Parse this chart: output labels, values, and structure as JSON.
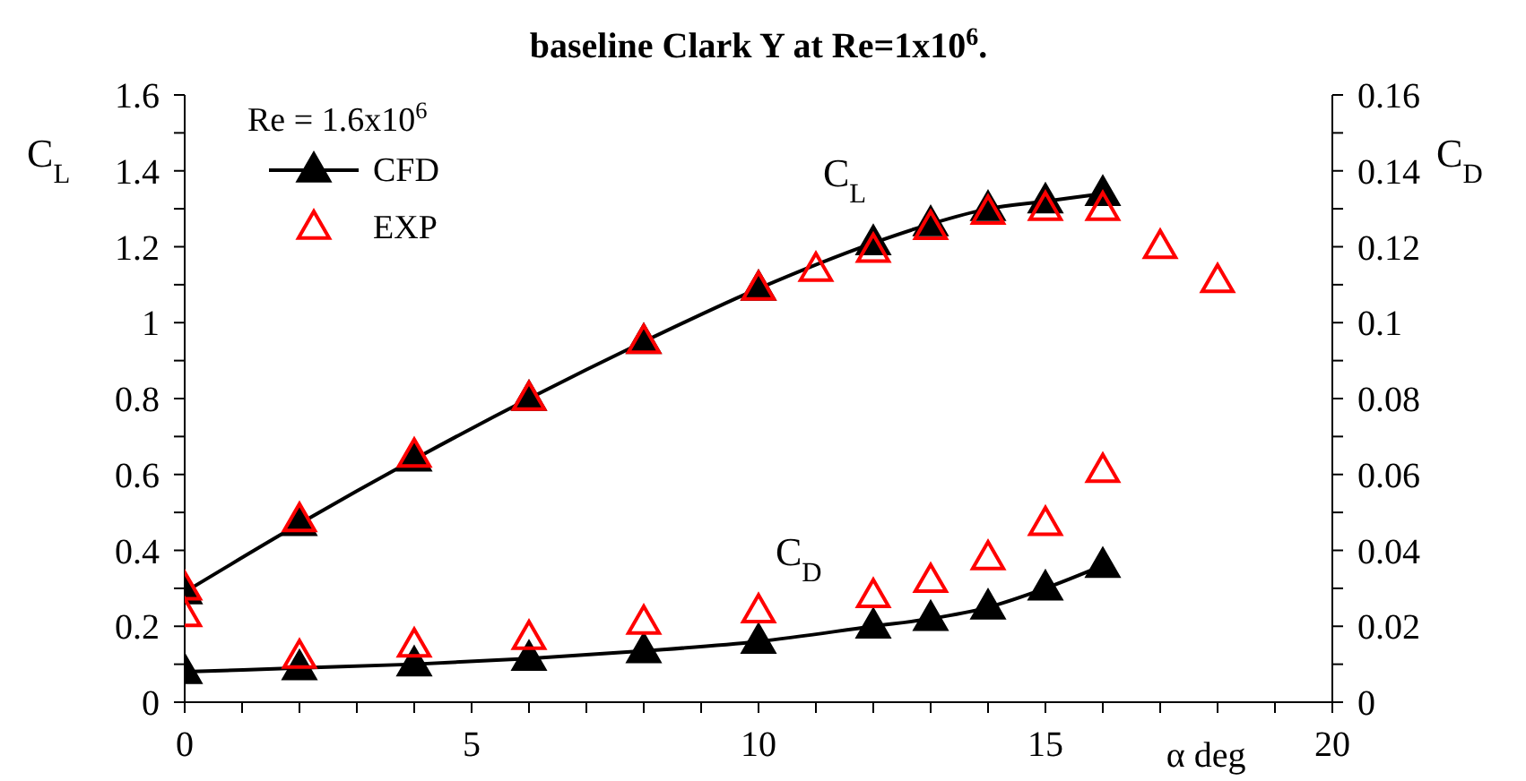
{
  "chart_data": {
    "type": "line",
    "title": "baseline Clark Y at Re=1x10$^{6}$.",
    "xlabel": "α deg",
    "ylabel": "C$_{L}$",
    "y2label": "C$_{D}$",
    "legend_title": "Re = 1.6x10$^{6}$",
    "annotations": [
      "C$_{L}$",
      "C$_{D}$"
    ],
    "xlim": [
      0,
      20
    ],
    "xticks": [
      0,
      {
        "value": 1,
        "label": null
      },
      {
        "value": 2,
        "label": null
      },
      {
        "value": 3,
        "label": null
      },
      {
        "value": 4,
        "label": null
      },
      5,
      {
        "value": 6,
        "label": null
      },
      {
        "value": 7,
        "label": null
      },
      {
        "value": 8,
        "label": null
      },
      {
        "value": 9,
        "label": null
      },
      10,
      {
        "value": 11,
        "label": null
      },
      {
        "value": 12,
        "label": null
      },
      {
        "value": 13,
        "label": null
      },
      {
        "value": 14,
        "label": null
      },
      15,
      {
        "value": 16,
        "label": null
      },
      {
        "value": 17,
        "label": null
      },
      {
        "value": 18,
        "label": null
      },
      {
        "value": 19,
        "label": null
      },
      20
    ],
    "ylim": [
      0,
      1.6
    ],
    "yticks": [
      0,
      {
        "value": 0.1,
        "label": null
      },
      0.2,
      {
        "value": 0.3,
        "label": null
      },
      0.4,
      {
        "value": 0.5,
        "label": null
      },
      0.6,
      {
        "value": 0.7,
        "label": null
      },
      0.8,
      {
        "value": 0.9,
        "label": null
      },
      1,
      {
        "value": 1.1,
        "label": null
      },
      1.2,
      {
        "value": 1.3,
        "label": null
      },
      1.4,
      {
        "value": 1.5,
        "label": null
      },
      1.6
    ],
    "y2lim": [
      0,
      0.16
    ],
    "y2ticks": [
      0,
      {
        "value": 0.01,
        "label": null
      },
      0.02,
      {
        "value": 0.03,
        "label": null
      },
      0.04,
      {
        "value": 0.05,
        "label": null
      },
      0.06,
      {
        "value": 0.07,
        "label": null
      },
      0.08,
      {
        "value": 0.09,
        "label": null
      },
      0.1,
      {
        "value": 0.11,
        "label": null
      },
      0.12,
      {
        "value": 0.13,
        "label": null
      },
      0.14,
      {
        "value": 0.15,
        "label": null
      },
      0.16
    ],
    "grid": false,
    "legend": "top left",
    "marker": "triangle",
    "line_style": "solid",
    "series": [
      {
        "name": "CFD",
        "type": "line",
        "color": "#000000",
        "x": [
          0,
          2,
          4,
          6,
          8,
          10,
          12,
          13,
          14,
          15,
          16
        ],
        "values": [
          0.29,
          0.47,
          0.64,
          0.8,
          0.95,
          1.09,
          1.21,
          1.26,
          1.3,
          1.32,
          1.34
        ]
      },
      {
        "name": "EXP",
        "type": "scatter",
        "color": "#ff0000",
        "x": [
          0,
          2,
          4,
          6,
          8,
          10,
          11,
          12,
          13,
          14,
          15,
          16,
          17,
          18
        ],
        "values": [
          0.3,
          0.48,
          0.65,
          0.8,
          0.95,
          1.09,
          1.14,
          1.19,
          1.25,
          1.29,
          1.3,
          1.3,
          1.2,
          1.11
        ]
      },
      {
        "type": "line",
        "axis": "y2",
        "color": "#000000",
        "x": [
          0,
          2,
          4,
          6,
          8,
          10,
          12,
          13,
          14,
          15,
          16
        ],
        "values": [
          0.008,
          0.009,
          0.01,
          0.0115,
          0.0135,
          0.016,
          0.02,
          0.022,
          0.025,
          0.03,
          0.036
        ]
      },
      {
        "type": "scatter",
        "axis": "y2",
        "color": "#ff0000",
        "x": [
          0,
          2,
          4,
          6,
          8,
          10,
          12,
          13,
          14,
          15,
          16
        ],
        "values": [
          0.023,
          0.012,
          0.015,
          0.017,
          0.021,
          0.024,
          0.028,
          0.032,
          0.038,
          0.047,
          0.061
        ]
      }
    ]
  }
}
